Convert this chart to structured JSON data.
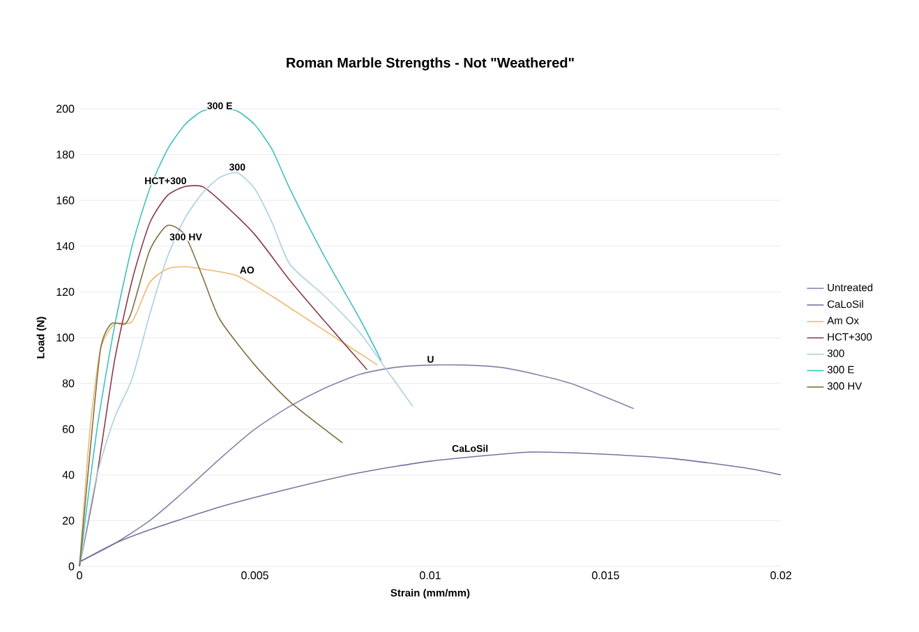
{
  "chart_data": {
    "type": "line",
    "title": "Roman Marble Strengths - Not \"Weathered\"",
    "xlabel": "Strain (mm/mm)",
    "ylabel": "Load (N)",
    "xlim": [
      0,
      0.02
    ],
    "ylim": [
      0,
      200
    ],
    "xticks": [
      0,
      0.005,
      0.01,
      0.015,
      0.02
    ],
    "yticks": [
      0,
      20,
      40,
      60,
      80,
      100,
      120,
      140,
      160,
      180,
      200
    ],
    "grid": "y",
    "legend": "right",
    "marker": "none",
    "line_style": "solid",
    "series": [
      {
        "name": "Untreated",
        "color": "#8484aa",
        "x": [
          0,
          0.001,
          0.002,
          0.003,
          0.004,
          0.005,
          0.006,
          0.007,
          0.008,
          0.009,
          0.01,
          0.011,
          0.012,
          0.013,
          0.014,
          0.015,
          0.0158
        ],
        "values": [
          2,
          10,
          20,
          33,
          47,
          60,
          70,
          78,
          84,
          87,
          88,
          88,
          87,
          84,
          80,
          74,
          69
        ]
      },
      {
        "name": "CaLoSil",
        "color": "#7474a0",
        "x": [
          0,
          0.001,
          0.002,
          0.004,
          0.006,
          0.008,
          0.01,
          0.012,
          0.013,
          0.015,
          0.017,
          0.019,
          0.02
        ],
        "values": [
          2,
          10,
          16,
          26,
          34,
          41,
          46,
          49,
          50,
          49,
          47,
          43,
          40
        ]
      },
      {
        "name": "Am Ox",
        "color": "#f0b870",
        "x": [
          0,
          0.0003,
          0.0006,
          0.001,
          0.0015,
          0.002,
          0.0025,
          0.003,
          0.0035,
          0.0045,
          0.0055,
          0.0065,
          0.0075,
          0.0085
        ],
        "values": [
          0,
          60,
          95,
          106,
          107,
          124,
          130,
          131,
          130,
          127,
          118,
          108,
          98,
          88
        ]
      },
      {
        "name": "HCT+300",
        "color": "#8b3a4a",
        "x": [
          0,
          0.0005,
          0.001,
          0.0015,
          0.002,
          0.0025,
          0.003,
          0.0035,
          0.004,
          0.005,
          0.006,
          0.007,
          0.0082
        ],
        "values": [
          0,
          40,
          90,
          125,
          150,
          162,
          166,
          166,
          160,
          145,
          125,
          107,
          86
        ]
      },
      {
        "name": "300",
        "color": "#a8d0e0",
        "x": [
          0,
          0.0005,
          0.001,
          0.0015,
          0.002,
          0.0025,
          0.003,
          0.0035,
          0.004,
          0.0045,
          0.005,
          0.0055,
          0.006,
          0.007,
          0.008,
          0.0088,
          0.0095
        ],
        "values": [
          0,
          40,
          65,
          82,
          110,
          135,
          152,
          163,
          170,
          172,
          165,
          150,
          132,
          118,
          102,
          85,
          70
        ]
      },
      {
        "name": "300 E",
        "color": "#40c0c0",
        "x": [
          0,
          0.0005,
          0.001,
          0.0015,
          0.002,
          0.0025,
          0.003,
          0.0035,
          0.004,
          0.0045,
          0.005,
          0.0055,
          0.006,
          0.007,
          0.008,
          0.0086
        ],
        "values": [
          0,
          60,
          105,
          140,
          165,
          182,
          193,
          199,
          200,
          199,
          193,
          182,
          165,
          135,
          108,
          90
        ]
      },
      {
        "name": "300 HV",
        "color": "#807040",
        "x": [
          0,
          0.0003,
          0.0006,
          0.0009,
          0.0013,
          0.0015,
          0.002,
          0.0025,
          0.003,
          0.0035,
          0.004,
          0.005,
          0.006,
          0.0075
        ],
        "values": [
          0,
          50,
          95,
          106,
          106,
          112,
          138,
          149,
          145,
          127,
          108,
          88,
          72,
          54
        ]
      }
    ],
    "annotations": [
      {
        "text": "300 E",
        "x": 0.004,
        "y": 200
      },
      {
        "text": "HCT+300",
        "x": 0.003,
        "y": 166
      },
      {
        "text": "300",
        "x": 0.0045,
        "y": 172
      },
      {
        "text": "300 HV",
        "x": 0.0025,
        "y": 149
      },
      {
        "text": "AO",
        "x": 0.0045,
        "y": 127
      },
      {
        "text": "U",
        "x": 0.01,
        "y": 88
      },
      {
        "text": "CaLoSil",
        "x": 0.012,
        "y": 49
      }
    ]
  }
}
